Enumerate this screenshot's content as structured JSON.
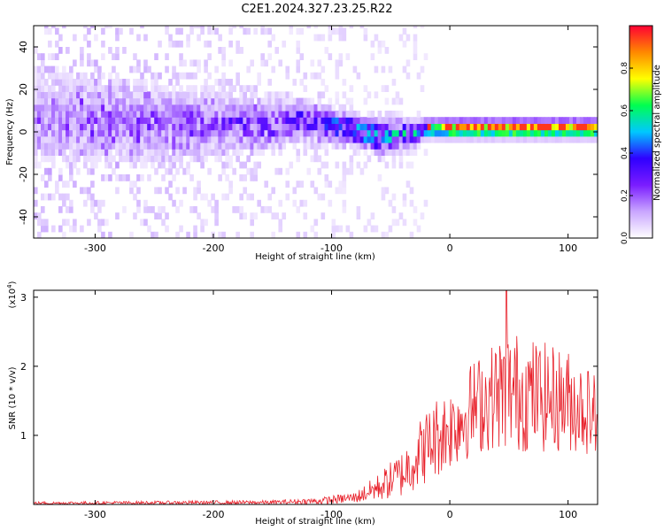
{
  "title": "C2E1.2024.327.23.25.R22",
  "chart_data": [
    {
      "type": "heatmap",
      "xlabel": "Height of straight line (km)",
      "ylabel": "Frequency (Hz)",
      "xlim": [
        -352,
        125
      ],
      "ylim": [
        -50,
        50
      ],
      "xticks": [
        -300,
        -200,
        -100,
        0,
        100
      ],
      "yticks": [
        -40,
        -20,
        0,
        20,
        40
      ],
      "colorbar": {
        "label": "Normalized spectral amplitude",
        "range": [
          0,
          1
        ],
        "ticks": [
          0.0,
          0.2,
          0.4,
          0.6,
          0.8
        ],
        "colormap": [
          "#ffffff",
          "#c9a6ff",
          "#7a1cff",
          "#2f00ff",
          "#00c8ff",
          "#00ff50",
          "#ffff00",
          "#ff8800",
          "#ff0033"
        ]
      },
      "signal_profile": [
        {
          "height_km": -350,
          "center_hz": 5,
          "half_width_hz": 18,
          "amplitude": 0.12
        },
        {
          "height_km": -250,
          "center_hz": 3,
          "half_width_hz": 14,
          "amplitude": 0.16
        },
        {
          "height_km": -175,
          "center_hz": 2,
          "half_width_hz": 10,
          "amplitude": 0.2
        },
        {
          "height_km": -125,
          "center_hz": 4,
          "half_width_hz": 7,
          "amplitude": 0.25
        },
        {
          "height_km": -100,
          "center_hz": 2,
          "half_width_hz": 6,
          "amplitude": 0.35
        },
        {
          "height_km": -80,
          "center_hz": -1,
          "half_width_hz": 5,
          "amplitude": 0.45
        },
        {
          "height_km": -60,
          "center_hz": -4,
          "half_width_hz": 6,
          "amplitude": 0.4
        },
        {
          "height_km": -30,
          "center_hz": -2,
          "half_width_hz": 4,
          "amplitude": 0.45
        },
        {
          "height_km": -20,
          "center_hz": 0,
          "half_width_hz": 3,
          "amplitude": 0.7
        },
        {
          "height_km": 0,
          "center_hz": 0,
          "half_width_hz": 3,
          "amplitude": 0.85
        },
        {
          "height_km": 60,
          "center_hz": 0,
          "half_width_hz": 3,
          "amplitude": 0.9
        },
        {
          "height_km": 125,
          "center_hz": 0,
          "half_width_hz": 3,
          "amplitude": 0.85
        }
      ]
    },
    {
      "type": "line",
      "xlabel": "Height of straight line (km)",
      "ylabel": "SNR (10 * v/v)",
      "y_multiplier_label": "(x10",
      "y_multiplier_exp": "4",
      "y_multiplier_close": ")",
      "xlim": [
        -352,
        125
      ],
      "ylim": [
        0,
        3.1
      ],
      "xticks": [
        -300,
        -200,
        -100,
        0,
        100
      ],
      "yticks": [
        1,
        2,
        3
      ],
      "color": "#e8202a",
      "envelope": [
        {
          "x": -352,
          "mean": 0.02,
          "amp": 0.02
        },
        {
          "x": -150,
          "mean": 0.03,
          "amp": 0.03
        },
        {
          "x": -110,
          "mean": 0.05,
          "amp": 0.05
        },
        {
          "x": -80,
          "mean": 0.1,
          "amp": 0.08
        },
        {
          "x": -60,
          "mean": 0.25,
          "amp": 0.2
        },
        {
          "x": -40,
          "mean": 0.45,
          "amp": 0.35
        },
        {
          "x": -25,
          "mean": 0.75,
          "amp": 0.5
        },
        {
          "x": -10,
          "mean": 1.0,
          "amp": 0.6
        },
        {
          "x": 0,
          "mean": 1.1,
          "amp": 0.6
        },
        {
          "x": 20,
          "mean": 1.4,
          "amp": 0.7
        },
        {
          "x": 40,
          "mean": 1.6,
          "amp": 0.8
        },
        {
          "x": 50,
          "mean": 1.65,
          "amp": 0.9
        },
        {
          "x": 80,
          "mean": 1.55,
          "amp": 0.8
        },
        {
          "x": 100,
          "mean": 1.5,
          "amp": 0.75
        },
        {
          "x": 125,
          "mean": 1.3,
          "amp": 0.6
        }
      ],
      "peak": {
        "x": 48,
        "y": 3.1
      }
    }
  ]
}
